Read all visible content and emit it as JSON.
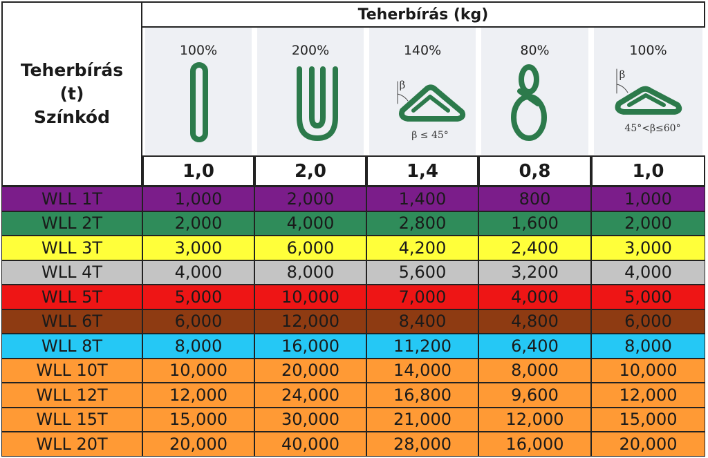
{
  "header": {
    "left_title": [
      "Teherbírás",
      "(t)",
      "Színkód"
    ],
    "title": "Teherbírás (kg)"
  },
  "columns": [
    {
      "percent": "100%",
      "factor": "1,0"
    },
    {
      "percent": "200%",
      "factor": "2,0"
    },
    {
      "percent": "140%",
      "factor": "1,4",
      "angle_symbol": "β",
      "angle_note": "β ≤ 45°"
    },
    {
      "percent": "80%",
      "factor": "0,8"
    },
    {
      "percent": "100%",
      "factor": "1,0",
      "angle_symbol": "β",
      "angle_note": "45°<β≤60°"
    }
  ],
  "rows": [
    {
      "label": "WLL 1T",
      "color": "#7b1d8a",
      "values": [
        "1,000",
        "2,000",
        "1,400",
        "800",
        "1,000"
      ]
    },
    {
      "label": "WLL 2T",
      "color": "#2f8c5a",
      "values": [
        "2,000",
        "4,000",
        "2,800",
        "1,600",
        "2,000"
      ]
    },
    {
      "label": "WLL 3T",
      "color": "#ffff3a",
      "values": [
        "3,000",
        "6,000",
        "4,200",
        "2,400",
        "3,000"
      ]
    },
    {
      "label": "WLL 4T",
      "color": "#c4c4c4",
      "values": [
        "4,000",
        "8,000",
        "5,600",
        "3,200",
        "4,000"
      ]
    },
    {
      "label": "WLL 5T",
      "color": "#ee1515",
      "values": [
        "5,000",
        "10,000",
        "7,000",
        "4,000",
        "5,000"
      ]
    },
    {
      "label": "WLL 6T",
      "color": "#8e3b12",
      "values": [
        "6,000",
        "12,000",
        "8,400",
        "4,800",
        "6,000"
      ]
    },
    {
      "label": "WLL 8T",
      "color": "#25c8f5",
      "values": [
        "8,000",
        "16,000",
        "11,200",
        "6,400",
        "8,000"
      ]
    },
    {
      "label": "WLL 10T",
      "color": "#ff9a35",
      "values": [
        "10,000",
        "20,000",
        "14,000",
        "8,000",
        "10,000"
      ]
    },
    {
      "label": "WLL 12T",
      "color": "#ff9a35",
      "values": [
        "12,000",
        "24,000",
        "16,800",
        "9,600",
        "12,000"
      ]
    },
    {
      "label": "WLL 15T",
      "color": "#ff9a35",
      "values": [
        "15,000",
        "30,000",
        "21,000",
        "12,000",
        "15,000"
      ]
    },
    {
      "label": "WLL 20T",
      "color": "#ff9a35",
      "values": [
        "20,000",
        "40,000",
        "28,000",
        "16,000",
        "20,000"
      ]
    }
  ]
}
